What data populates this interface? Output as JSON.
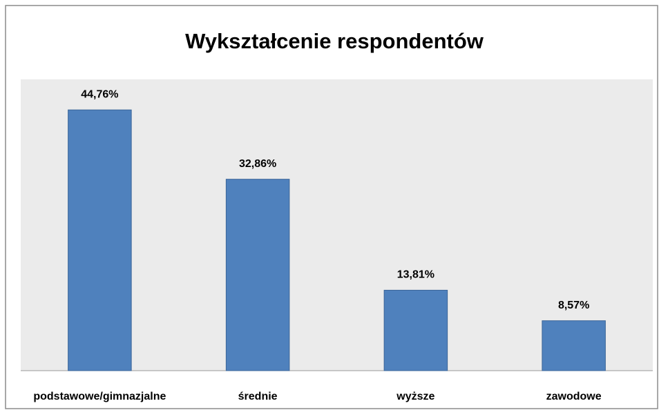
{
  "chart_data": {
    "type": "bar",
    "title": "Wykształcenie respondentów",
    "categories": [
      "podstawowe/gimnazjalne",
      "średnie",
      "wyższe",
      "zawodowe"
    ],
    "values": [
      44.76,
      32.86,
      13.81,
      8.57
    ],
    "value_labels": [
      "44,76%",
      "32,86%",
      "13,81%",
      "8,57%"
    ],
    "color": "#4f81bd",
    "ylim": [
      0,
      50
    ]
  }
}
